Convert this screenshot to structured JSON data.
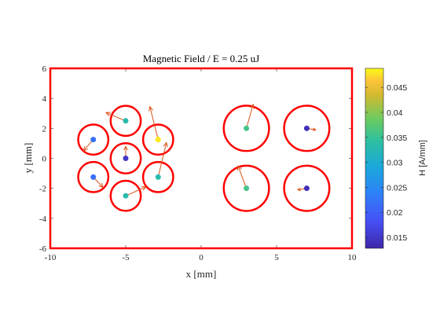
{
  "chart_data": {
    "type": "scatter",
    "title": "Magnetic Field / E = 0.25 uJ",
    "xlabel": "x [mm]",
    "ylabel": "y [mm]",
    "xlim": [
      -10,
      10
    ],
    "ylim": [
      -6,
      6
    ],
    "xticks": [
      -10,
      -5,
      0,
      5,
      10
    ],
    "yticks": [
      -6,
      -4,
      -2,
      0,
      2,
      4,
      6
    ],
    "xtick_labels": [
      "-10",
      "-5",
      "0",
      "5",
      "10"
    ],
    "ytick_labels": [
      "-6",
      "-4",
      "-2",
      "0",
      "2",
      "4",
      "6"
    ],
    "grid": false,
    "boundary": {
      "x": [
        -10,
        10
      ],
      "y": [
        -6,
        6
      ],
      "color": "#ff0000"
    },
    "wire_color": "#ff0000",
    "arrow_color": "#d95319",
    "colormap": "parula",
    "colorbar": {
      "label": "H [A/mm]",
      "limits": [
        0.0128,
        0.0488
      ],
      "ticks": [
        0.015,
        0.02,
        0.025,
        0.03,
        0.035,
        0.04,
        0.045
      ],
      "tick_labels": [
        "0.015",
        "0.02",
        "0.025",
        "0.03",
        "0.035",
        "0.04",
        "0.045"
      ]
    },
    "wires": [
      {
        "x": -5.0,
        "y": 2.5,
        "r": 1.0
      },
      {
        "x": -7.15,
        "y": 1.25,
        "r": 1.0
      },
      {
        "x": -2.85,
        "y": 1.25,
        "r": 1.0
      },
      {
        "x": -5.0,
        "y": 0.0,
        "r": 1.0
      },
      {
        "x": -7.15,
        "y": -1.25,
        "r": 1.0
      },
      {
        "x": -2.85,
        "y": -1.25,
        "r": 1.0
      },
      {
        "x": -5.0,
        "y": -2.5,
        "r": 1.0
      },
      {
        "x": 3.0,
        "y": 2.0,
        "r": 1.5
      },
      {
        "x": 7.0,
        "y": 2.0,
        "r": 1.5
      },
      {
        "x": 3.0,
        "y": -2.0,
        "r": 1.5
      },
      {
        "x": 7.0,
        "y": -2.0,
        "r": 1.5
      }
    ],
    "points": [
      {
        "x": -5.0,
        "y": 2.5,
        "h": 0.033,
        "dx": -1.3,
        "dy": 0.55
      },
      {
        "x": -7.15,
        "y": 1.25,
        "h": 0.022,
        "dx": -0.65,
        "dy": -0.75
      },
      {
        "x": -2.85,
        "y": 1.25,
        "h": 0.048,
        "dx": -0.55,
        "dy": 2.2
      },
      {
        "x": -5.0,
        "y": 0.0,
        "h": 0.015,
        "dx": 0.0,
        "dy": 0.8
      },
      {
        "x": -7.15,
        "y": -1.25,
        "h": 0.022,
        "dx": 0.65,
        "dy": -0.7
      },
      {
        "x": -2.85,
        "y": -1.25,
        "h": 0.033,
        "dx": 0.55,
        "dy": 2.3
      },
      {
        "x": -5.0,
        "y": -2.5,
        "h": 0.033,
        "dx": 1.35,
        "dy": 0.6
      },
      {
        "x": 3.0,
        "y": 2.0,
        "h": 0.036,
        "dx": 0.45,
        "dy": 1.6
      },
      {
        "x": 7.0,
        "y": 2.0,
        "h": 0.014,
        "dx": 0.6,
        "dy": -0.1
      },
      {
        "x": 3.0,
        "y": -2.0,
        "h": 0.036,
        "dx": -0.55,
        "dy": 1.5
      },
      {
        "x": 7.0,
        "y": -2.0,
        "h": 0.014,
        "dx": -0.6,
        "dy": -0.1
      }
    ]
  }
}
